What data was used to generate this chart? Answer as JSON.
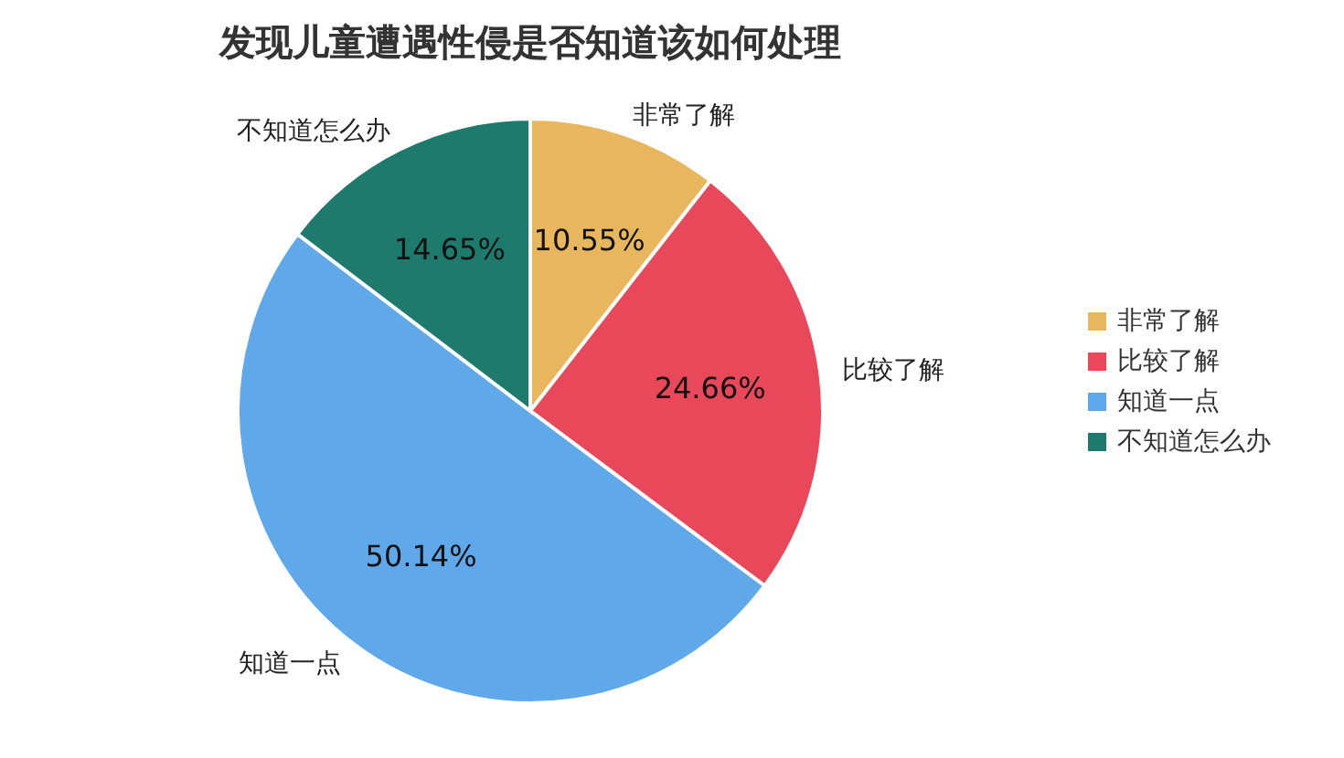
{
  "chart_data": {
    "type": "pie",
    "title": "发现儿童遭遇性侵是否知道该如何处理",
    "categories": [
      "非常了解",
      "比较了解",
      "知道一点",
      "不知道怎么办"
    ],
    "values": [
      10.55,
      24.66,
      50.14,
      14.65
    ],
    "colors": [
      "#e8b65c",
      "#e8485a",
      "#5fa8ea",
      "#1d7a6c"
    ],
    "value_labels": [
      "10.55%",
      "24.66%",
      "50.14%",
      "14.65%"
    ],
    "legend": "right"
  }
}
